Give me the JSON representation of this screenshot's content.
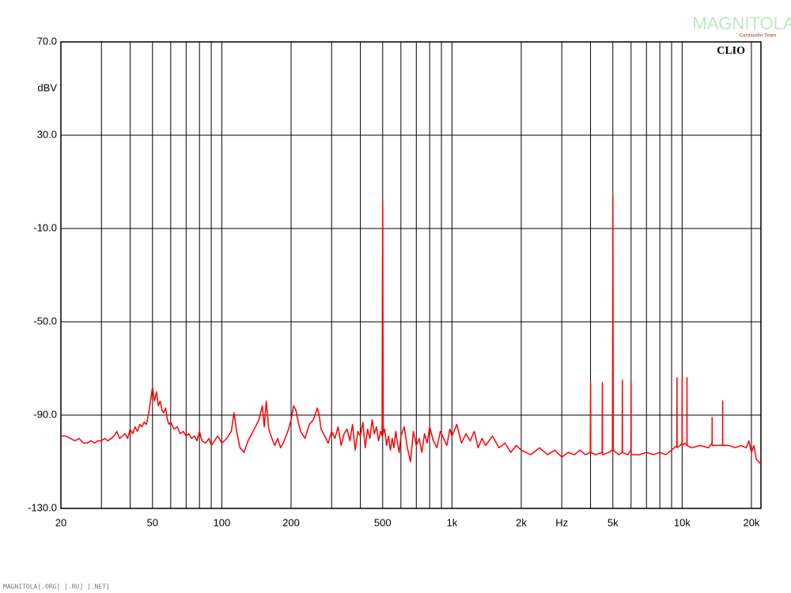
{
  "chart_data": {
    "type": "line",
    "ylabel": "dBV",
    "brand": "CLIO",
    "watermark": "MAGNITOLA",
    "watermark_sub": "Cardaudio Team",
    "footer": "MAGNITOLA[.ORG] [.RU] [.NET]",
    "log_x": true,
    "grid": true,
    "xlim": [
      20,
      22000
    ],
    "ylim": [
      -130,
      70
    ],
    "yticks": [
      {
        "value": -130,
        "label": "-130.0"
      },
      {
        "value": -90,
        "label": "-90.0"
      },
      {
        "value": -50,
        "label": "-50.0"
      },
      {
        "value": -10,
        "label": "-10.0"
      },
      {
        "value": 30,
        "label": "30.0"
      },
      {
        "value": 70,
        "label": "70.0"
      }
    ],
    "ylabel_at": 50,
    "xticks": [
      20,
      50,
      100,
      200,
      500,
      {
        "value": 1000,
        "label": "1k"
      },
      {
        "value": 2000,
        "label": "2k"
      },
      {
        "value": 3000,
        "label": "Hz"
      },
      {
        "value": 5000,
        "label": "5k"
      },
      {
        "value": 10000,
        "label": "10k"
      },
      {
        "value": 20000,
        "label": "20k"
      }
    ],
    "xgrid": [
      30,
      40,
      60,
      70,
      80,
      90,
      300,
      400,
      600,
      700,
      800,
      900,
      4000,
      6000,
      7000,
      8000,
      9000
    ],
    "x": [
      20,
      21,
      22,
      23,
      24,
      25,
      26,
      27,
      28,
      29,
      30,
      31,
      32,
      33,
      34,
      35,
      36,
      37,
      38,
      39,
      40,
      41,
      42,
      43,
      44,
      45,
      46,
      47,
      48,
      49,
      50,
      51,
      52,
      53,
      54,
      55,
      56,
      57,
      58,
      59,
      60,
      62,
      64,
      66,
      68,
      70,
      72,
      74,
      76,
      78,
      80,
      82,
      85,
      88,
      90,
      93,
      96,
      100,
      105,
      110,
      113,
      116,
      120,
      125,
      130,
      135,
      140,
      145,
      150,
      153,
      156,
      160,
      165,
      170,
      175,
      180,
      185,
      190,
      195,
      200,
      205,
      210,
      215,
      220,
      230,
      240,
      250,
      260,
      265,
      270,
      280,
      290,
      300,
      310,
      320,
      330,
      340,
      350,
      360,
      370,
      380,
      390,
      400,
      410,
      420,
      430,
      440,
      450,
      460,
      470,
      480,
      490,
      497,
      500,
      503,
      510,
      520,
      530,
      540,
      550,
      560,
      570,
      580,
      590,
      600,
      620,
      640,
      660,
      680,
      700,
      720,
      740,
      760,
      780,
      800,
      830,
      860,
      890,
      920,
      950,
      980,
      1000,
      1050,
      1100,
      1150,
      1200,
      1250,
      1300,
      1350,
      1400,
      1500,
      1600,
      1700,
      1800,
      1900,
      2000,
      2200,
      2400,
      2600,
      2800,
      3000,
      3200,
      3400,
      3600,
      3800,
      3990,
      4000,
      4010,
      4200,
      4490,
      4500,
      4510,
      4800,
      4980,
      5000,
      5020,
      5300,
      5490,
      5500,
      5510,
      5800,
      5990,
      6000,
      6010,
      6500,
      7000,
      7500,
      8000,
      8500,
      9000,
      9490,
      9500,
      9510,
      9800,
      9990,
      10000,
      10010,
      10300,
      10490,
      10500,
      10510,
      11000,
      12000,
      13000,
      13490,
      13500,
      13510,
      14000,
      14990,
      15000,
      15010,
      16000,
      17000,
      18000,
      19000,
      19500,
      20000,
      20500,
      21000,
      22000
    ],
    "series": [
      {
        "color": "#ff0000",
        "values": [
          -99,
          -99,
          -100,
          -101,
          -100,
          -102,
          -102,
          -101,
          -102,
          -101,
          -101,
          -100,
          -101,
          -100,
          -99,
          -97,
          -100,
          -99,
          -98,
          -100,
          -96,
          -98,
          -95,
          -97,
          -94,
          -95,
          -93,
          -94,
          -90,
          -84,
          -78,
          -84,
          -80,
          -86,
          -84,
          -88,
          -89,
          -87,
          -92,
          -94,
          -93,
          -96,
          -95,
          -98,
          -97,
          -99,
          -98,
          -100,
          -99,
          -101,
          -97,
          -101,
          -102,
          -100,
          -103,
          -101,
          -99,
          -102,
          -100,
          -97,
          -89,
          -97,
          -104,
          -106,
          -101,
          -98,
          -95,
          -92,
          -86,
          -95,
          -84,
          -96,
          -100,
          -103,
          -100,
          -104,
          -102,
          -99,
          -96,
          -92,
          -86,
          -88,
          -93,
          -97,
          -100,
          -94,
          -92,
          -87,
          -90,
          -96,
          -99,
          -102,
          -97,
          -100,
          -95,
          -103,
          -98,
          -96,
          -101,
          -94,
          -105,
          -97,
          -99,
          -93,
          -104,
          -96,
          -100,
          -92,
          -98,
          -95,
          -101,
          -97,
          -99,
          2.5,
          -98,
          -96,
          -103,
          -99,
          -105,
          -100,
          -104,
          -97,
          -102,
          -106,
          -99,
          -95,
          -104,
          -110,
          -97,
          -103,
          -100,
          -106,
          -98,
          -102,
          -95,
          -101,
          -104,
          -97,
          -100,
          -103,
          -96,
          -99,
          -94,
          -102,
          -98,
          -101,
          -97,
          -104,
          -100,
          -103,
          -99,
          -104,
          -102,
          -106,
          -103,
          -105,
          -107,
          -104,
          -107,
          -105,
          -108,
          -106,
          -107,
          -105,
          -107,
          -106,
          -76,
          -106,
          -107,
          -106,
          -76,
          -107,
          -106,
          -105,
          3.5,
          -105,
          -107,
          -106,
          -75,
          -106,
          -107,
          -105,
          -76,
          -107,
          -107,
          -106,
          -107,
          -106,
          -107,
          -105,
          -103,
          -74,
          -104,
          -103,
          -102,
          -74,
          -103,
          -102,
          -103,
          -74,
          -103,
          -104,
          -103,
          -104,
          -102,
          -91,
          -103,
          -103,
          -103,
          -84,
          -103,
          -103,
          -104,
          -103,
          -104,
          -101,
          -106,
          -103,
          -109,
          -111
        ]
      }
    ]
  }
}
